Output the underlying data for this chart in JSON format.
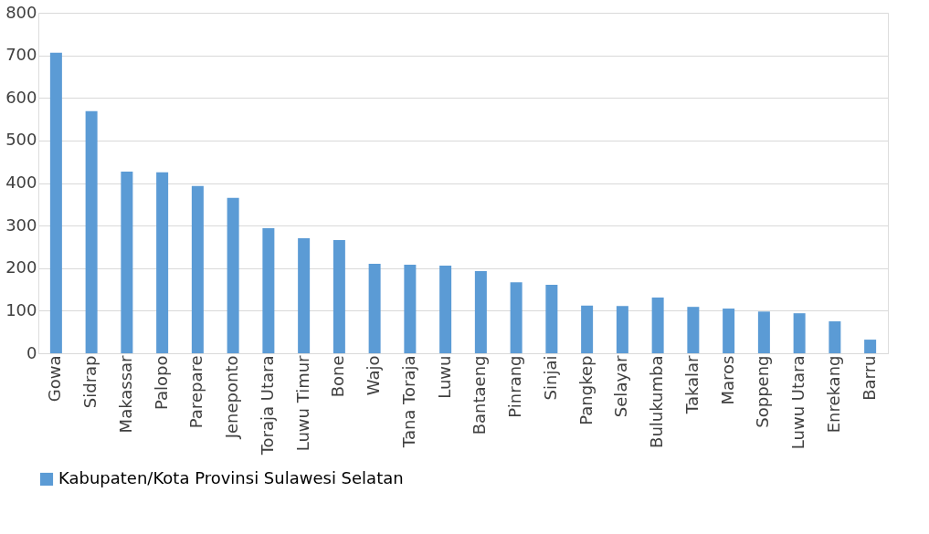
{
  "chart_data": {
    "type": "bar",
    "categories": [
      "Gowa",
      "Sidrap",
      "Makassar",
      "Palopo",
      "Parepare",
      "Jeneponto",
      "Toraja Utara",
      "Luwu Timur",
      "Bone",
      "Wajo",
      "Tana Toraja",
      "Luwu",
      "Bantaeng",
      "Pinrang",
      "Sinjai",
      "Pangkep",
      "Selayar",
      "Bulukumba",
      "Takalar",
      "Maros",
      "Soppeng",
      "Luwu Utara",
      "Enrekang",
      "Barru"
    ],
    "series": [
      {
        "name": "Kabupaten/Kota Provinsi Sulawesi Selatan",
        "color": "#5b9bd5",
        "values": [
          706,
          569,
          427,
          425,
          393,
          365,
          294,
          270,
          266,
          210,
          208,
          206,
          193,
          167,
          161,
          112,
          111,
          131,
          109,
          105,
          98,
          94,
          75,
          32
        ]
      }
    ],
    "ylim": [
      0,
      800
    ],
    "yticks": [
      0,
      100,
      200,
      300,
      400,
      500,
      600,
      700,
      800
    ],
    "grid": "y",
    "legend": "bottom"
  }
}
